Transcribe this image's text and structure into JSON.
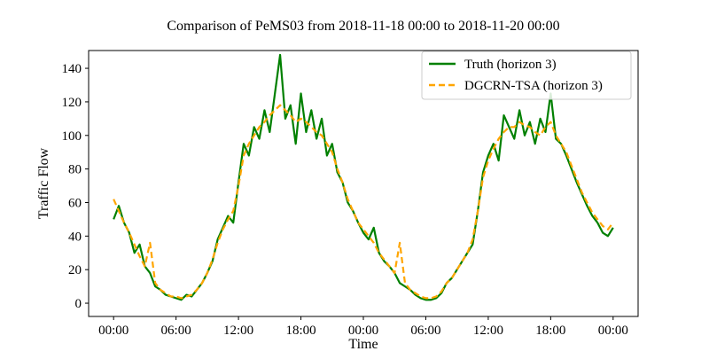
{
  "chart_data": {
    "type": "line",
    "title": "Comparison of PeMS03 from 2018-11-18 00:00 to 2018-11-20 00:00",
    "x_label": "Time",
    "y_label": "Traffic Flow",
    "x": [
      0,
      0.5,
      1,
      1.5,
      2,
      2.5,
      3,
      3.5,
      4,
      4.5,
      5,
      5.5,
      6,
      6.5,
      7,
      7.5,
      8,
      8.5,
      9,
      9.5,
      10,
      10.5,
      11,
      11.5,
      12,
      12.5,
      13,
      13.5,
      14,
      14.5,
      15,
      15.5,
      16,
      16.5,
      17,
      17.5,
      18,
      18.5,
      19,
      19.5,
      20,
      20.5,
      21,
      21.5,
      22,
      22.5,
      23,
      23.5,
      24,
      24.5,
      25,
      25.5,
      26,
      26.5,
      27,
      27.5,
      28,
      28.5,
      29,
      29.5,
      30,
      30.5,
      31,
      31.5,
      32,
      32.5,
      33,
      33.5,
      34,
      34.5,
      35,
      35.5,
      36,
      36.5,
      37,
      37.5,
      38,
      38.5,
      39,
      39.5,
      40,
      40.5,
      41,
      41.5,
      42,
      42.5,
      43,
      43.5,
      44,
      44.5,
      45,
      45.5,
      46,
      46.5,
      47,
      47.5,
      48
    ],
    "series": [
      {
        "name": "Truth (horizon 3)",
        "color": "#008000",
        "dash": "none",
        "values": [
          50,
          58,
          48,
          42,
          30,
          35,
          22,
          18,
          10,
          8,
          5,
          4,
          3,
          2,
          5,
          4,
          8,
          12,
          18,
          25,
          38,
          45,
          52,
          48,
          72,
          95,
          88,
          105,
          98,
          115,
          102,
          125,
          148,
          110,
          118,
          95,
          125,
          102,
          115,
          98,
          110,
          88,
          95,
          78,
          72,
          60,
          55,
          48,
          42,
          38,
          45,
          30,
          25,
          22,
          18,
          12,
          10,
          8,
          5,
          3,
          2,
          2,
          3,
          6,
          12,
          15,
          20,
          25,
          30,
          35,
          55,
          78,
          88,
          95,
          85,
          112,
          105,
          98,
          115,
          100,
          108,
          95,
          110,
          102,
          125,
          98,
          95,
          88,
          80,
          72,
          65,
          58,
          52,
          48,
          42,
          40,
          45
        ]
      },
      {
        "name": "DGCRN-TSA (horizon 3)",
        "color": "#ffa500",
        "dash": "7,4",
        "values": [
          62,
          55,
          48,
          42,
          35,
          28,
          22,
          36,
          12,
          8,
          6,
          4,
          4,
          3,
          4,
          5,
          8,
          12,
          18,
          26,
          36,
          44,
          50,
          55,
          70,
          88,
          95,
          100,
          105,
          108,
          112,
          115,
          118,
          115,
          112,
          108,
          110,
          108,
          105,
          102,
          100,
          95,
          90,
          80,
          72,
          62,
          55,
          48,
          44,
          40,
          36,
          30,
          26,
          22,
          18,
          36,
          12,
          8,
          6,
          4,
          3,
          3,
          4,
          7,
          12,
          15,
          20,
          25,
          30,
          38,
          55,
          75,
          85,
          92,
          98,
          102,
          105,
          105,
          108,
          106,
          105,
          102,
          100,
          105,
          108,
          100,
          95,
          90,
          82,
          74,
          66,
          60,
          54,
          50,
          46,
          44,
          48
        ]
      }
    ],
    "xlim": [
      -2.4,
      50.4
    ],
    "ylim": [
      -7.9,
      150.6
    ],
    "xticks": [
      {
        "value": 0,
        "label": "00:00"
      },
      {
        "value": 6,
        "label": "06:00"
      },
      {
        "value": 12,
        "label": "12:00"
      },
      {
        "value": 18,
        "label": "18:00"
      },
      {
        "value": 24,
        "label": "00:00"
      },
      {
        "value": 30,
        "label": "06:00"
      },
      {
        "value": 36,
        "label": "12:00"
      },
      {
        "value": 42,
        "label": "18:00"
      },
      {
        "value": 48,
        "label": "00:00"
      }
    ],
    "yticks": [
      0,
      20,
      40,
      60,
      80,
      100,
      120,
      140
    ],
    "grid": false,
    "legend": "upper right"
  }
}
